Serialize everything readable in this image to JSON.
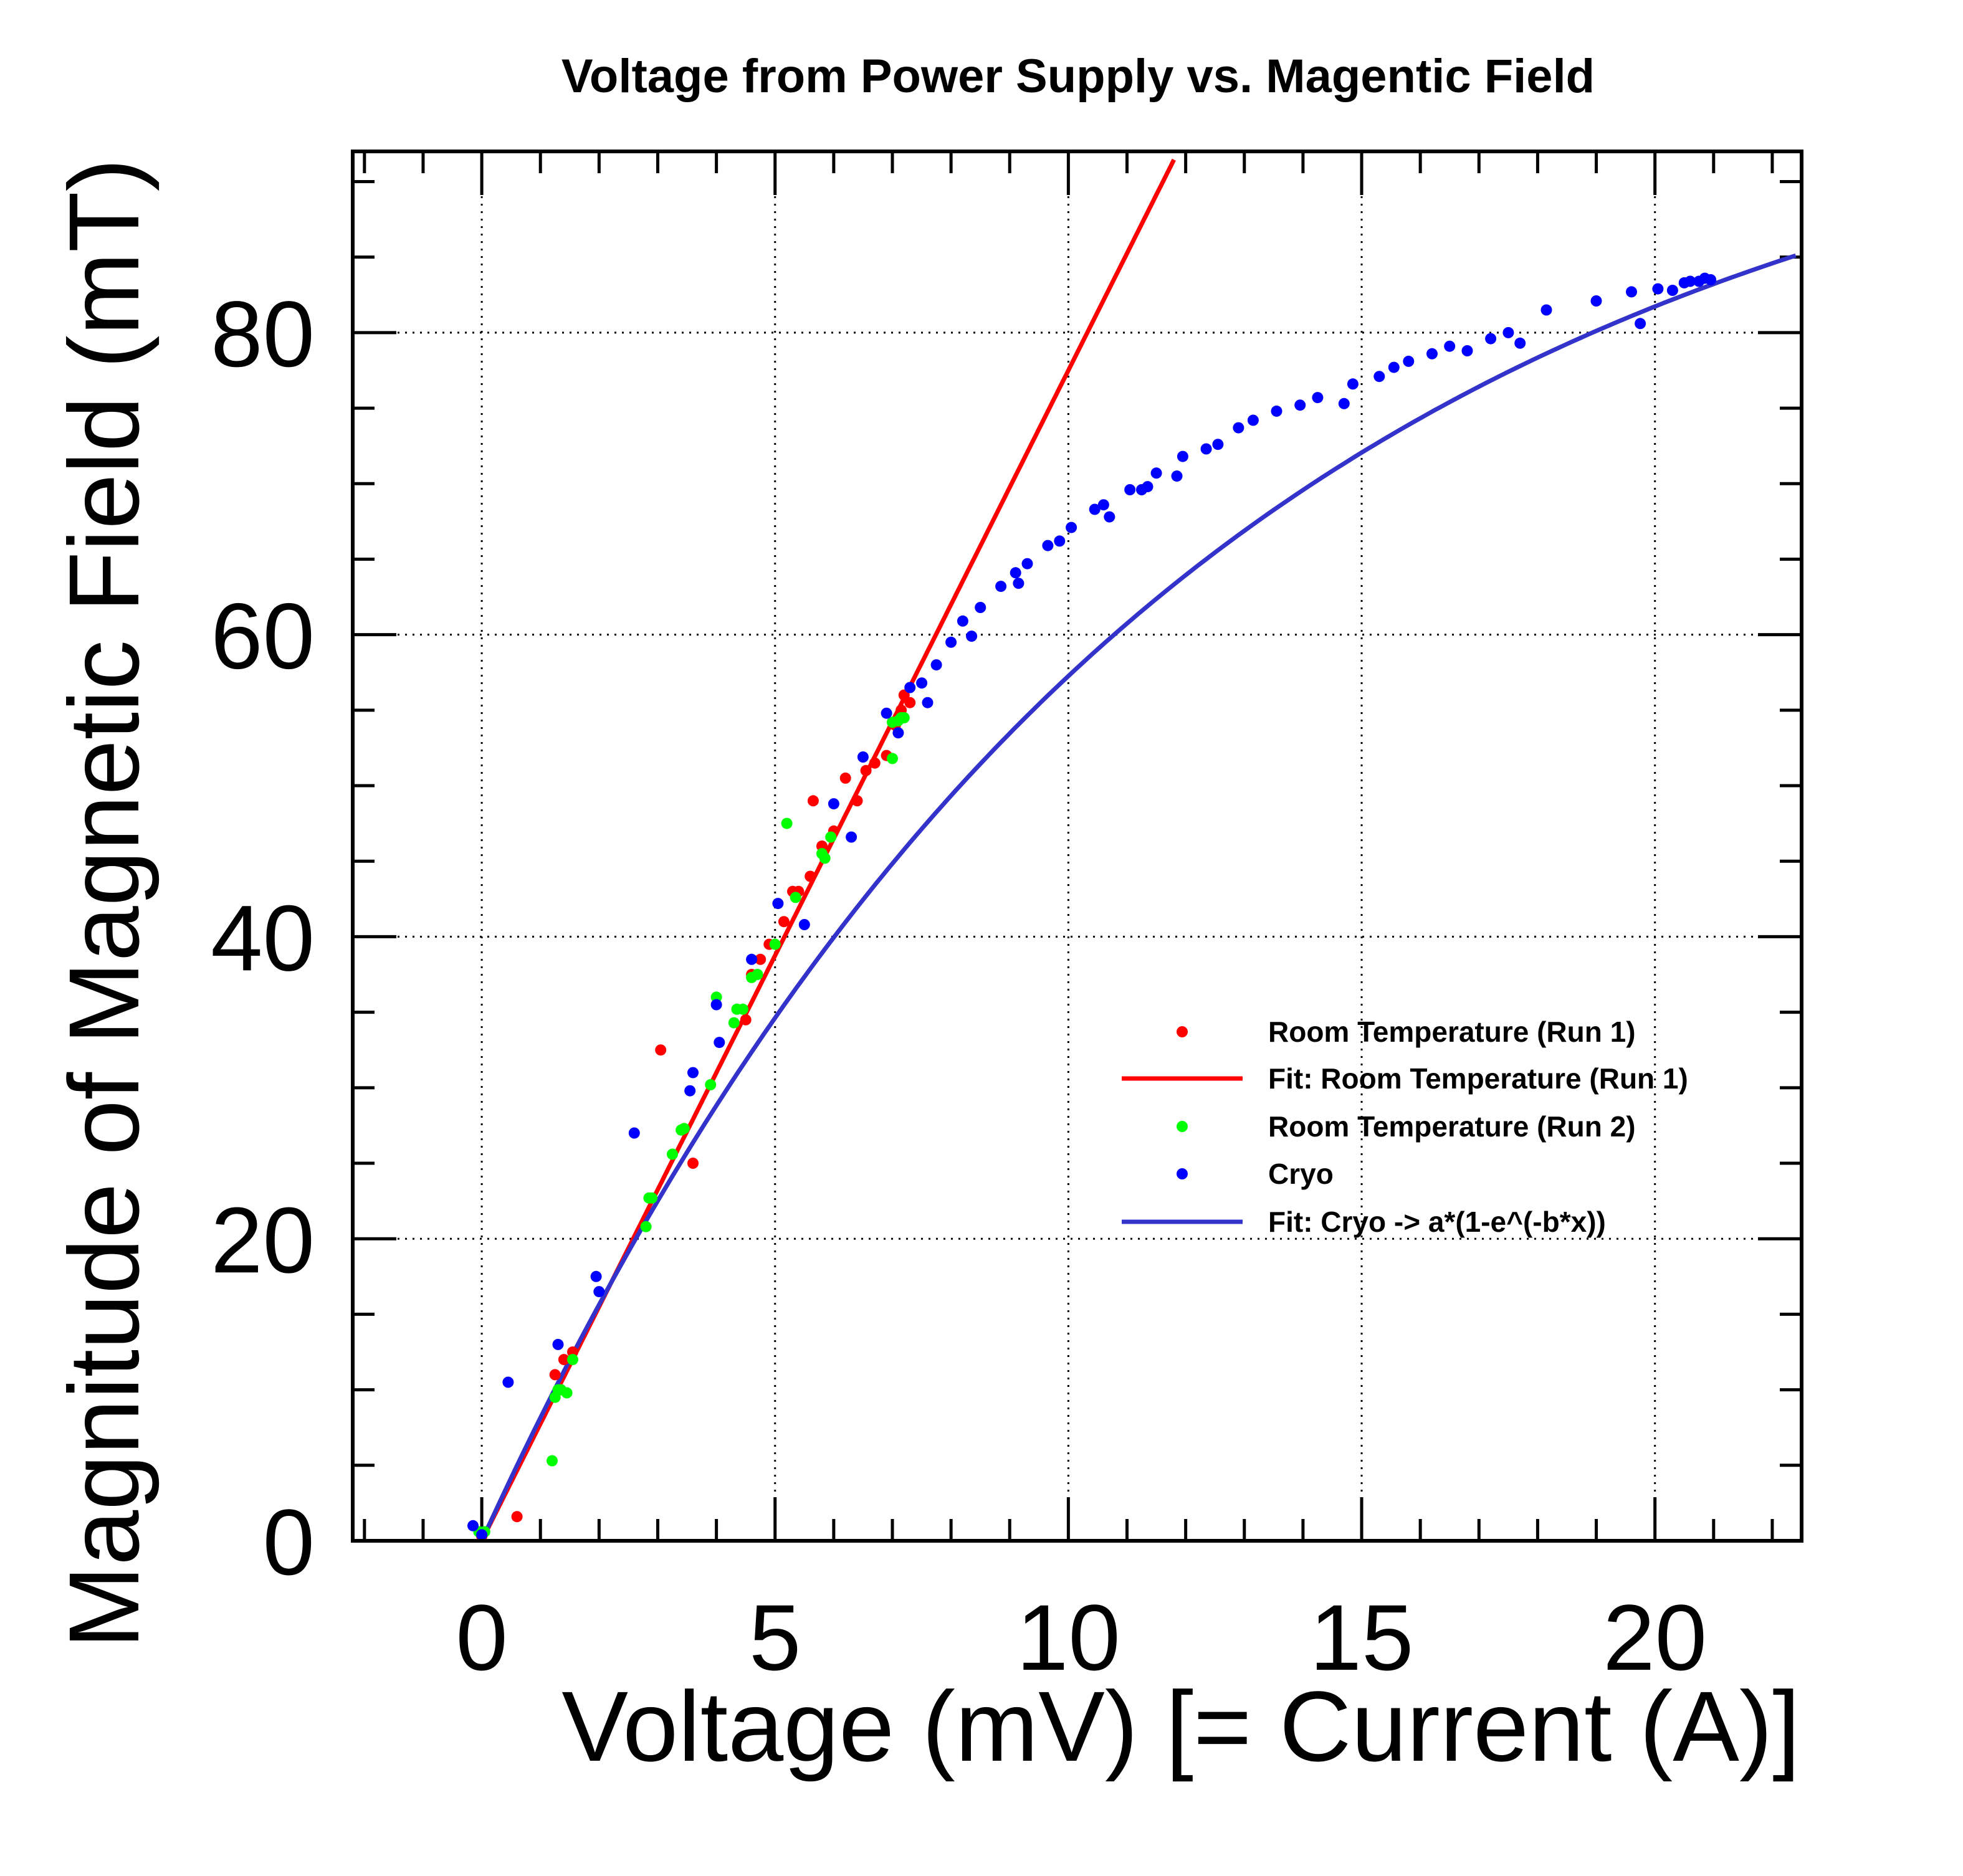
{
  "chart_data": {
    "type": "scatter",
    "title": "Voltage from Power Supply vs. Magentic Field",
    "xlabel": "Voltage (mV) [= Current (A)]",
    "ylabel": "Magnitude of Magnetic Field (mT)",
    "xlim": [
      -2.2,
      22.5
    ],
    "ylim": [
      0,
      92
    ],
    "xticks": [
      0,
      5,
      10,
      15,
      20
    ],
    "yticks": [
      0,
      20,
      40,
      60,
      80
    ],
    "grid": true,
    "legend_position": "right",
    "legend": [
      {
        "label": "Room Temperature (Run 1)",
        "kind": "marker",
        "color": "#ff0000"
      },
      {
        "label": "Fit: Room Temperature (Run 1)",
        "kind": "line",
        "color": "#ff0000"
      },
      {
        "label": "Room Temperature (Run 2)",
        "kind": "marker",
        "color": "#00ff00"
      },
      {
        "label": "Cryo",
        "kind": "marker",
        "color": "#0000ff"
      },
      {
        "label": "Fit: Cryo -> a*(1-e^(-b*x))",
        "kind": "line",
        "color": "#3333cc"
      }
    ],
    "series": [
      {
        "name": "Room Temperature (Run 1)",
        "kind": "scatter",
        "color": "#ff0000",
        "points": [
          [
            0,
            0.3
          ],
          [
            0.6,
            1.6
          ],
          [
            1.25,
            11
          ],
          [
            1.4,
            12
          ],
          [
            1.55,
            12.5
          ],
          [
            3.05,
            32.5
          ],
          [
            3.6,
            25
          ],
          [
            4.5,
            34.5
          ],
          [
            4.6,
            37.5
          ],
          [
            4.75,
            38.5
          ],
          [
            4.9,
            39.5
          ],
          [
            5.15,
            41
          ],
          [
            5.3,
            43
          ],
          [
            5.4,
            43
          ],
          [
            5.6,
            44
          ],
          [
            5.65,
            49
          ],
          [
            5.8,
            46
          ],
          [
            6.0,
            47
          ],
          [
            6.2,
            50.5
          ],
          [
            6.4,
            49
          ],
          [
            6.55,
            51
          ],
          [
            6.7,
            51.5
          ],
          [
            6.9,
            52
          ],
          [
            7.05,
            54
          ],
          [
            7.15,
            55
          ],
          [
            7.2,
            56
          ],
          [
            7.3,
            55.5
          ]
        ]
      },
      {
        "name": "Room Temperature (Run 2)",
        "kind": "scatter",
        "color": "#00ff00",
        "points": [
          [
            -0.05,
            0.6
          ],
          [
            0.05,
            0.6
          ],
          [
            1.2,
            5.3
          ],
          [
            1.25,
            9.5
          ],
          [
            1.3,
            10
          ],
          [
            1.35,
            10
          ],
          [
            1.45,
            9.8
          ],
          [
            1.55,
            12
          ],
          [
            2.8,
            20.8
          ],
          [
            2.85,
            22.7
          ],
          [
            2.9,
            22.7
          ],
          [
            3.25,
            25.6
          ],
          [
            3.4,
            27.2
          ],
          [
            3.45,
            27.3
          ],
          [
            3.9,
            30.2
          ],
          [
            4.0,
            36
          ],
          [
            4.3,
            34.3
          ],
          [
            4.35,
            35.2
          ],
          [
            4.45,
            35.2
          ],
          [
            4.6,
            37.3
          ],
          [
            4.7,
            37.5
          ],
          [
            5.0,
            39.5
          ],
          [
            5.2,
            47.5
          ],
          [
            5.35,
            42.6
          ],
          [
            5.8,
            45.5
          ],
          [
            5.85,
            45.2
          ],
          [
            5.95,
            46.6
          ],
          [
            7.0,
            51.8
          ],
          [
            7.0,
            54.2
          ],
          [
            7.1,
            54.3
          ],
          [
            7.15,
            54.5
          ],
          [
            7.2,
            54.5
          ]
        ]
      },
      {
        "name": "Cryo",
        "kind": "scatter",
        "color": "#0000ff",
        "points": [
          [
            -0.15,
            1
          ],
          [
            0.0,
            0.4
          ],
          [
            0.45,
            10.5
          ],
          [
            1.3,
            13
          ],
          [
            1.95,
            17.5
          ],
          [
            2.0,
            16.5
          ],
          [
            2.6,
            27
          ],
          [
            3.55,
            29.8
          ],
          [
            3.6,
            31
          ],
          [
            4.0,
            35.5
          ],
          [
            4.05,
            33
          ],
          [
            4.6,
            38.5
          ],
          [
            5.05,
            42.2
          ],
          [
            5.5,
            40.8
          ],
          [
            6.0,
            48.8
          ],
          [
            6.3,
            46.6
          ],
          [
            6.5,
            51.9
          ],
          [
            6.9,
            54.8
          ],
          [
            7.1,
            53.5
          ],
          [
            7.3,
            56.5
          ],
          [
            7.5,
            56.8
          ],
          [
            7.6,
            55.5
          ],
          [
            7.75,
            58
          ],
          [
            8.0,
            59.5
          ],
          [
            8.2,
            60.9
          ],
          [
            8.35,
            59.9
          ],
          [
            8.5,
            61.8
          ],
          [
            8.85,
            63.2
          ],
          [
            9.1,
            64.1
          ],
          [
            9.15,
            63.4
          ],
          [
            9.3,
            64.7
          ],
          [
            9.65,
            65.9
          ],
          [
            9.85,
            66.2
          ],
          [
            10.05,
            67.1
          ],
          [
            10.45,
            68.3
          ],
          [
            10.6,
            68.6
          ],
          [
            10.7,
            67.8
          ],
          [
            11.05,
            69.6
          ],
          [
            11.25,
            69.6
          ],
          [
            11.35,
            69.8
          ],
          [
            11.5,
            70.7
          ],
          [
            11.85,
            70.5
          ],
          [
            11.95,
            71.8
          ],
          [
            12.35,
            72.3
          ],
          [
            12.55,
            72.6
          ],
          [
            12.9,
            73.7
          ],
          [
            13.15,
            74.2
          ],
          [
            13.55,
            74.8
          ],
          [
            13.95,
            75.2
          ],
          [
            14.25,
            75.7
          ],
          [
            14.7,
            75.3
          ],
          [
            14.85,
            76.6
          ],
          [
            15.3,
            77.1
          ],
          [
            15.55,
            77.7
          ],
          [
            15.8,
            78.1
          ],
          [
            16.2,
            78.6
          ],
          [
            16.5,
            79.1
          ],
          [
            16.8,
            78.8
          ],
          [
            17.2,
            79.6
          ],
          [
            17.5,
            80
          ],
          [
            17.7,
            79.3
          ],
          [
            18.15,
            81.5
          ],
          [
            19.0,
            82.1
          ],
          [
            19.6,
            82.7
          ],
          [
            19.75,
            80.6
          ],
          [
            20.05,
            82.9
          ],
          [
            20.3,
            82.8
          ],
          [
            20.5,
            83.3
          ],
          [
            20.6,
            83.4
          ],
          [
            20.75,
            83.4
          ],
          [
            20.85,
            83.6
          ],
          [
            20.95,
            83.5
          ]
        ]
      },
      {
        "name": "Fit: Room Temperature (Run 1)",
        "kind": "line",
        "color": "#ff0000",
        "function": "linear",
        "slope": 7.75,
        "intercept": 0,
        "x_range": [
          0,
          11.8
        ]
      },
      {
        "name": "Fit: Cryo -> a*(1-e^(-b*x))",
        "kind": "line",
        "color": "#3333cc",
        "function": "exp_saturation",
        "a": 100,
        "b": 0.085,
        "x_range": [
          0,
          22.4
        ]
      }
    ]
  }
}
